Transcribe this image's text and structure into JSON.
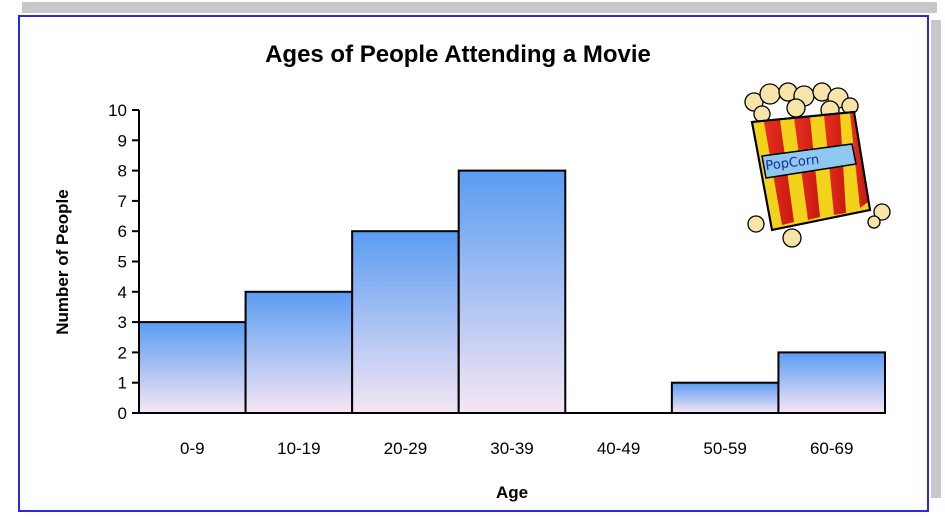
{
  "chart_data": {
    "type": "bar",
    "title": "Ages of People Attending a Movie",
    "xlabel": "Age",
    "ylabel": "Number of People",
    "categories": [
      "0-9",
      "10-19",
      "20-29",
      "30-39",
      "40-49",
      "50-59",
      "60-69"
    ],
    "values": [
      3,
      4,
      6,
      8,
      0,
      1,
      2
    ],
    "ylim": [
      0,
      10
    ],
    "yticks": [
      0,
      1,
      2,
      3,
      4,
      5,
      6,
      7,
      8,
      9,
      10
    ],
    "grid": false,
    "legend": "none",
    "bar_gradient_top": "#5a9cf2",
    "bar_gradient_bottom": "#f6e6f4"
  },
  "decoration": {
    "icon": "popcorn-bucket-icon",
    "label": "PopCorn"
  }
}
